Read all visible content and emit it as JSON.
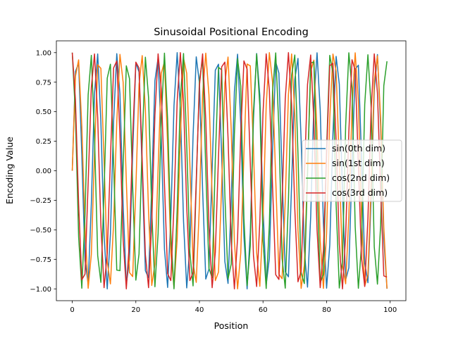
{
  "chart_data": {
    "type": "line",
    "title": "Sinusoidal Positional Encoding",
    "xlabel": "Position",
    "ylabel": "Encoding Value",
    "xlim": [
      -5,
      104.95
    ],
    "ylim": [
      -1.1,
      1.1
    ],
    "xticks": [
      0,
      20,
      40,
      60,
      80,
      100
    ],
    "xtick_labels": [
      "0",
      "20",
      "40",
      "60",
      "80",
      "100"
    ],
    "yticks": [
      -1.0,
      -0.75,
      -0.5,
      -0.25,
      0.0,
      0.25,
      0.5,
      0.75,
      1.0
    ],
    "ytick_labels": [
      "−1.00",
      "−0.75",
      "−0.50",
      "−0.25",
      "0.00",
      "0.25",
      "0.50",
      "0.75",
      "1.00"
    ],
    "grid": false,
    "legend_position": "center-right",
    "x": [
      0,
      1,
      2,
      3,
      4,
      5,
      6,
      7,
      8,
      9,
      10,
      11,
      12,
      13,
      14,
      15,
      16,
      17,
      18,
      19,
      20,
      21,
      22,
      23,
      24,
      25,
      26,
      27,
      28,
      29,
      30,
      31,
      32,
      33,
      34,
      35,
      36,
      37,
      38,
      39,
      40,
      41,
      42,
      43,
      44,
      45,
      46,
      47,
      48,
      49,
      50,
      51,
      52,
      53,
      54,
      55,
      56,
      57,
      58,
      59,
      60,
      61,
      62,
      63,
      64,
      65,
      66,
      67,
      68,
      69,
      70,
      71,
      72,
      73,
      74,
      75,
      76,
      77,
      78,
      79,
      80,
      81,
      82,
      83,
      84,
      85,
      86,
      87,
      88,
      89,
      90,
      91,
      92,
      93,
      94,
      95,
      96,
      97,
      98,
      99
    ],
    "series": [
      {
        "name": "sin(0th dim)",
        "color": "#1f77b4",
        "values": [
          0.0,
          0.841,
          0.909,
          0.141,
          -0.757,
          -0.959,
          -0.279,
          0.657,
          0.989,
          0.412,
          -0.544,
          -1.0,
          -0.537,
          0.42,
          0.991,
          0.65,
          -0.288,
          -0.961,
          -0.751,
          0.15,
          0.913,
          0.837,
          -0.009,
          -0.846,
          -0.906,
          -0.132,
          0.763,
          0.956,
          0.271,
          -0.664,
          -0.988,
          -0.404,
          0.551,
          1.0,
          0.529,
          -0.428,
          -0.992,
          -0.644,
          0.296,
          0.964,
          0.745,
          -0.159,
          -0.917,
          -0.832,
          0.018,
          0.851,
          0.902,
          0.124,
          -0.768,
          -0.954,
          -0.262,
          0.67,
          0.987,
          0.396,
          -0.559,
          -1.0,
          -0.522,
          0.436,
          0.993,
          0.637,
          -0.305,
          -0.966,
          -0.739,
          0.168,
          0.92,
          0.827,
          -0.027,
          -0.856,
          -0.898,
          -0.115,
          0.774,
          0.951,
          0.254,
          -0.677,
          -0.985,
          -0.388,
          0.566,
          0.999,
          0.514,
          -0.444,
          -0.994,
          -0.63,
          0.313,
          0.968,
          0.733,
          -0.176,
          -0.923,
          -0.822,
          0.035,
          0.86,
          0.894,
          0.106,
          -0.779,
          -0.948,
          -0.245,
          0.683,
          0.984,
          0.379,
          -0.573,
          -0.999
        ]
      },
      {
        "name": "sin(1st dim)",
        "color": "#ff7f0e",
        "values": [
          0.0,
          0.8,
          0.939,
          0.38,
          -0.482,
          -0.995,
          -0.708,
          0.151,
          0.897,
          0.867,
          0.082,
          -0.769,
          -0.958,
          -0.45,
          0.417,
          0.985,
          0.75,
          -0.084,
          -0.862,
          -0.896,
          -0.15,
          0.731,
          0.975,
          0.517,
          -0.35,
          -0.971,
          -0.789,
          0.016,
          0.825,
          0.922,
          0.217,
          -0.69,
          -0.988,
          -0.581,
          0.282,
          0.953,
          0.825,
          0.052,
          -0.785,
          -0.945,
          -0.284,
          0.646,
          0.996,
          0.641,
          -0.213,
          -0.93,
          -0.858,
          -0.12,
          0.741,
          0.963,
          0.349,
          -0.6,
          -1.0,
          -0.697,
          0.143,
          0.904,
          0.888,
          0.187,
          -0.694,
          -0.978,
          -0.412,
          0.551,
          1.0,
          0.75,
          -0.073,
          -0.874,
          -0.914,
          -0.254,
          0.645,
          0.989,
          0.473,
          -0.499,
          -0.996,
          -0.798,
          0.003,
          0.841,
          0.937,
          0.319,
          -0.593,
          -0.996,
          -0.531,
          0.446,
          0.988,
          0.842,
          0.067,
          -0.804,
          -0.957,
          -0.383,
          0.539,
          0.999,
          0.587,
          -0.391,
          -0.976,
          -0.882,
          -0.137,
          0.764,
          0.973,
          0.445,
          -0.483,
          -0.998
        ]
      },
      {
        "name": "cos(2nd dim)",
        "color": "#2ca02c",
        "values": [
          1.0,
          0.469,
          -0.56,
          -0.995,
          -0.377,
          0.643,
          0.977,
          0.28,
          -0.718,
          -0.945,
          -0.179,
          0.784,
          0.902,
          0.075,
          -0.841,
          -0.846,
          0.03,
          0.888,
          0.78,
          -0.134,
          -0.926,
          -0.704,
          0.236,
          0.961,
          0.62,
          -0.34,
          -0.982,
          -0.53,
          0.433,
          0.996,
          0.43,
          -0.527,
          -1.0,
          -0.33,
          0.614,
          0.993,
          0.225,
          -0.693,
          -0.975,
          -0.117,
          0.765,
          0.946,
          0.01,
          -0.826,
          -0.906,
          0.1,
          0.876,
          0.854,
          -0.205,
          -0.915,
          -0.79,
          0.31,
          0.949,
          0.718,
          -0.405,
          -0.972,
          -0.636,
          0.5,
          0.988,
          0.548,
          -0.588,
          -0.997,
          -0.453,
          0.668,
          0.998,
          0.353,
          -0.742,
          -0.994,
          -0.25,
          0.807,
          0.98,
          0.143,
          -0.865,
          -0.955,
          -0.036,
          0.912,
          0.922,
          -0.073,
          -0.949,
          -0.878,
          0.179,
          0.977,
          0.826,
          -0.282,
          -0.993,
          -0.766,
          0.381,
          0.999,
          0.699,
          -0.474,
          -0.995,
          -0.625,
          0.562,
          0.982,
          0.545,
          -0.645,
          -0.96,
          -0.461,
          0.72,
          0.927
        ]
      },
      {
        "name": "cos(3rd dim)",
        "color": "#d62728",
        "values": [
          1.0,
          0.6,
          -0.28,
          -0.923,
          -0.876,
          -0.1,
          0.707,
          0.989,
          0.45,
          -0.46,
          -0.99,
          -0.7,
          0.1,
          0.87,
          0.93,
          0.3,
          -0.58,
          -1.0,
          -0.59,
          0.29,
          0.92,
          0.87,
          0.09,
          -0.71,
          -0.99,
          -0.44,
          0.47,
          0.99,
          0.69,
          -0.11,
          -0.87,
          -0.93,
          -0.29,
          0.59,
          1.0,
          0.58,
          -0.3,
          -0.93,
          -0.86,
          -0.08,
          0.72,
          0.99,
          0.43,
          -0.48,
          -0.99,
          -0.69,
          0.12,
          0.88,
          0.92,
          0.28,
          -0.6,
          -1.0,
          -0.57,
          0.31,
          0.93,
          0.86,
          0.07,
          -0.72,
          -0.98,
          -0.43,
          0.49,
          0.99,
          0.68,
          -0.13,
          -0.88,
          -0.92,
          -0.27,
          0.61,
          1.0,
          0.56,
          -0.32,
          -0.94,
          -0.85,
          -0.06,
          0.73,
          0.98,
          0.42,
          -0.5,
          -0.99,
          -0.67,
          0.14,
          0.89,
          0.91,
          0.26,
          -0.62,
          -1.0,
          -0.55,
          0.33,
          0.94,
          0.85,
          0.05,
          -0.74,
          -0.98,
          -0.41,
          0.51,
          0.99,
          0.66,
          -0.15,
          -0.89,
          -0.9
        ]
      }
    ]
  }
}
